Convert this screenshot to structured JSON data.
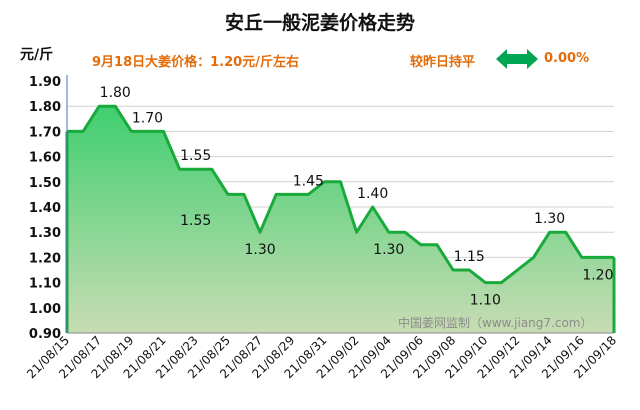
{
  "header": {
    "title": "安丘一般泥姜价格走势",
    "unit": "元/斤",
    "price_note": "9月18日大姜价格：1.20元/斤左右",
    "compare_label": "较昨日持平",
    "change_value": "0.00%",
    "arrow_icon": "left-right-arrow-icon",
    "accent_color": "#e36c0a",
    "arrow_color": "#00a651"
  },
  "watermark": "中国姜网监制（www.jiang7.com）",
  "chart_data": {
    "type": "area",
    "title": "安丘一般泥姜价格走势",
    "ylabel": "元/斤",
    "ylim": [
      0.9,
      1.9
    ],
    "yticks": [
      "1.90",
      "1.80",
      "1.70",
      "1.60",
      "1.50",
      "1.40",
      "1.30",
      "1.20",
      "1.10",
      "1.00",
      "0.90"
    ],
    "xtick_labels": [
      "21/08/15",
      "21/08/17",
      "21/08/19",
      "21/08/21",
      "21/08/23",
      "21/08/25",
      "21/08/27",
      "21/08/29",
      "21/08/31",
      "21/09/02",
      "21/09/04",
      "21/09/06",
      "21/09/08",
      "21/09/10",
      "21/09/12",
      "21/09/14",
      "21/09/16",
      "21/09/18"
    ],
    "x": [
      "21/08/15",
      "21/08/16",
      "21/08/17",
      "21/08/18",
      "21/08/19",
      "21/08/20",
      "21/08/21",
      "21/08/22",
      "21/08/23",
      "21/08/24",
      "21/08/25",
      "21/08/26",
      "21/08/27",
      "21/08/28",
      "21/08/29",
      "21/08/30",
      "21/08/31",
      "21/09/01",
      "21/09/02",
      "21/09/03",
      "21/09/04",
      "21/09/05",
      "21/09/06",
      "21/09/07",
      "21/09/08",
      "21/09/09",
      "21/09/10",
      "21/09/11",
      "21/09/12",
      "21/09/13",
      "21/09/14",
      "21/09/15",
      "21/09/16",
      "21/09/17",
      "21/09/18"
    ],
    "values": [
      1.7,
      1.7,
      1.8,
      1.8,
      1.7,
      1.7,
      1.7,
      1.55,
      1.55,
      1.55,
      1.45,
      1.45,
      1.3,
      1.45,
      1.45,
      1.45,
      1.5,
      1.5,
      1.3,
      1.4,
      1.3,
      1.3,
      1.25,
      1.25,
      1.15,
      1.15,
      1.1,
      1.1,
      1.15,
      1.2,
      1.3,
      1.3,
      1.2,
      1.2,
      1.2
    ],
    "data_labels": [
      {
        "index": 3,
        "text": "1.80",
        "pos": "above"
      },
      {
        "index": 5,
        "text": "1.70",
        "pos": "above"
      },
      {
        "index": 8,
        "text": "1.55",
        "pos": "above"
      },
      {
        "index": 8,
        "text": "1.55",
        "pos": "below-far"
      },
      {
        "index": 12,
        "text": "1.30",
        "pos": "below"
      },
      {
        "index": 15,
        "text": "1.45",
        "pos": "above"
      },
      {
        "index": 19,
        "text": "1.40",
        "pos": "above"
      },
      {
        "index": 20,
        "text": "1.30",
        "pos": "below"
      },
      {
        "index": 25,
        "text": "1.15",
        "pos": "above"
      },
      {
        "index": 26,
        "text": "1.10",
        "pos": "below"
      },
      {
        "index": 30,
        "text": "1.30",
        "pos": "above"
      },
      {
        "index": 33,
        "text": "1.20",
        "pos": "below"
      }
    ],
    "line_color": "#1aaa3c",
    "fill_top_color": "#3fcf6f",
    "fill_bottom_color": "#c8dcb4",
    "grid": true,
    "legend": "none"
  }
}
